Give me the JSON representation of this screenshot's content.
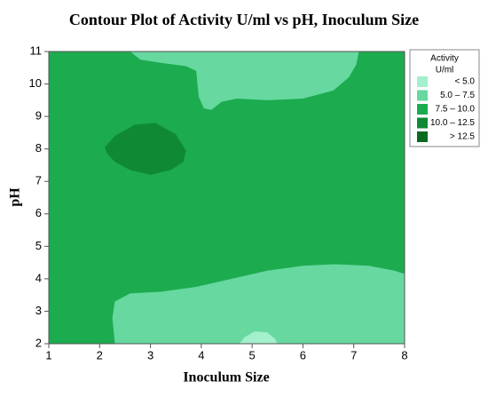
{
  "chart_data": {
    "type": "contour",
    "title": "Contour Plot of Activity U/ml vs pH, Inoculum Size",
    "x_label": "Inoculum Size",
    "y_label": "pH",
    "xlim": [
      1,
      8
    ],
    "ylim": [
      2,
      11
    ],
    "xticks": [
      1,
      2,
      3,
      4,
      5,
      6,
      7,
      8
    ],
    "yticks": [
      2,
      3,
      4,
      5,
      6,
      7,
      8,
      9,
      10,
      11
    ],
    "legend_title": [
      "Activity",
      "U/ml"
    ],
    "levels": [
      {
        "label": "< 5.0",
        "color": "#a3f0cc"
      },
      {
        "label": "5.0 – 7.5",
        "color": "#66d8a0"
      },
      {
        "label": "7.5 – 10.0",
        "color": "#1cab4f"
      },
      {
        "label": "10.0 – 12.5",
        "color": "#0f8a33"
      },
      {
        "label": "> 12.5",
        "color": "#0a6a1e"
      }
    ],
    "regions": [
      {
        "level": 2,
        "x": [
          1,
          8,
          8,
          1
        ],
        "y": [
          2,
          2,
          11,
          11
        ]
      },
      {
        "level": 1,
        "x": [
          2.6,
          2.8,
          3.2,
          3.7,
          3.9,
          3.95,
          4.05,
          4.2,
          4.4,
          4.7,
          5.3,
          6.0,
          6.6,
          6.9,
          7.05,
          7.1
        ],
        "y": [
          11,
          10.75,
          10.65,
          10.55,
          10.4,
          9.6,
          9.25,
          9.2,
          9.45,
          9.55,
          9.5,
          9.55,
          9.8,
          10.2,
          10.6,
          11
        ]
      },
      {
        "level": 1,
        "x": [
          2.3,
          2.25,
          2.3,
          2.6,
          3.2,
          3.9,
          4.6,
          5.3,
          6.0,
          6.6,
          7.3,
          7.8,
          8,
          8
        ],
        "y": [
          2,
          2.8,
          3.3,
          3.55,
          3.6,
          3.75,
          4.0,
          4.25,
          4.4,
          4.45,
          4.4,
          4.25,
          4.15,
          2
        ]
      },
      {
        "level": 0,
        "x": [
          4.75,
          4.85,
          5.05,
          5.3,
          5.45,
          5.5
        ],
        "y": [
          2,
          2.2,
          2.38,
          2.35,
          2.15,
          2
        ]
      },
      {
        "level": 3,
        "x": [
          2.1,
          2.3,
          2.7,
          3.1,
          3.5,
          3.7,
          3.65,
          3.4,
          3.0,
          2.6,
          2.3,
          2.15
        ],
        "y": [
          8.05,
          8.4,
          8.75,
          8.8,
          8.45,
          7.95,
          7.6,
          7.35,
          7.2,
          7.35,
          7.6,
          7.85
        ]
      }
    ],
    "grid": false
  }
}
